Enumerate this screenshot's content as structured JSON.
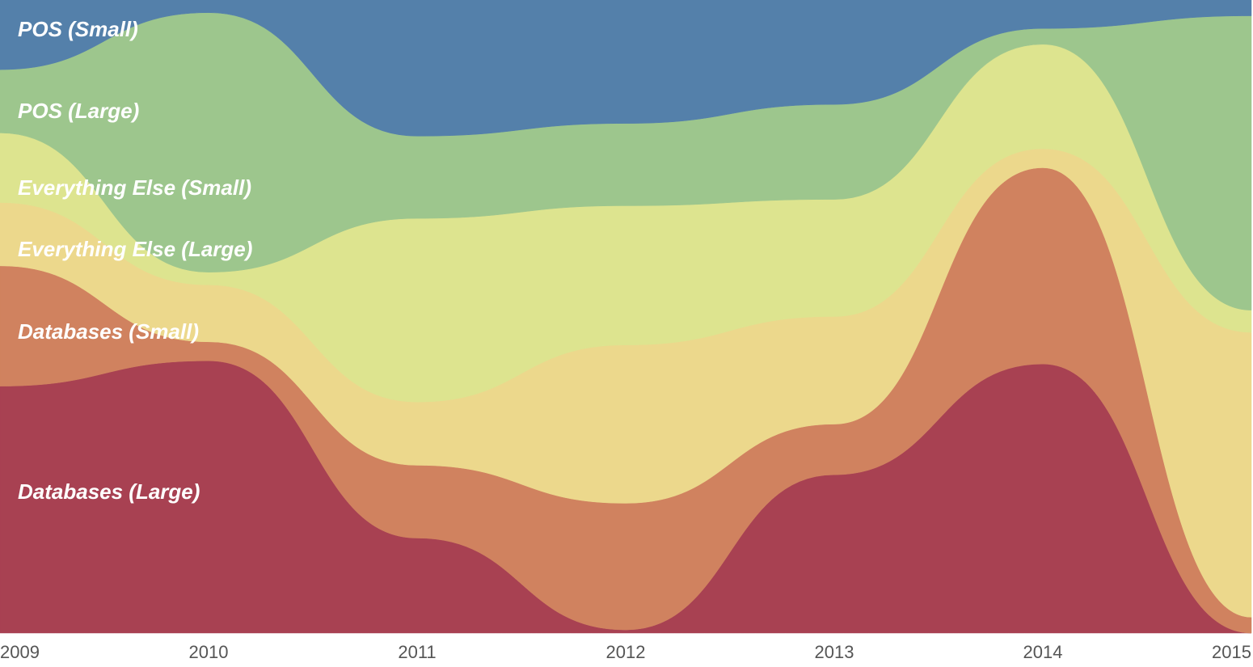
{
  "chart_data": {
    "type": "stacked-area",
    "x": [
      2009,
      2010,
      2011,
      2012,
      2013,
      2014,
      2015
    ],
    "xlim": [
      2009,
      2015
    ],
    "xticks": [
      2009,
      2010,
      2011,
      2012,
      2013,
      2014,
      2015
    ],
    "ylim": [
      0,
      100
    ],
    "series": [
      {
        "name": "Databases (Large)",
        "color": "#a84152",
        "values": [
          39,
          43,
          15,
          0.5,
          25,
          42.5,
          0
        ]
      },
      {
        "name": "Databases (Small)",
        "color": "#d0825f",
        "values": [
          19,
          3,
          11.5,
          20,
          8,
          31,
          2.5
        ]
      },
      {
        "name": "Everything Else (Large)",
        "color": "#ecd88c",
        "values": [
          10,
          9,
          10,
          25,
          17,
          3,
          45
        ]
      },
      {
        "name": "Everything Else (Small)",
        "color": "#dde48f",
        "values": [
          11,
          2,
          29,
          22,
          18.5,
          16.5,
          3.5
        ]
      },
      {
        "name": "POS (Large)",
        "color": "#9dc68d",
        "values": [
          10,
          41,
          13,
          13,
          15,
          2.5,
          46.5
        ]
      },
      {
        "name": "POS (Small)",
        "color": "#5480aa",
        "values": [
          11,
          2,
          21.5,
          19.5,
          16.5,
          4.5,
          2.5
        ]
      }
    ]
  }
}
